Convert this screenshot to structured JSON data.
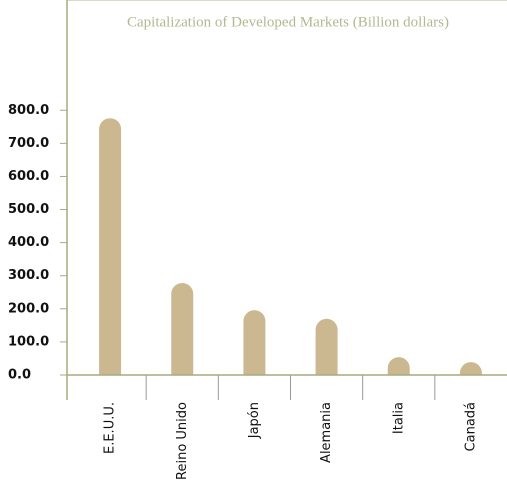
{
  "chart_data": {
    "type": "bar",
    "title": "Capitalization of Developed Markets (Billion dollars)",
    "categories": [
      "E.E.U.U.",
      "Reino Unido",
      "Japón",
      "Alemania",
      "Italia",
      "Canadá"
    ],
    "values": [
      776,
      278,
      196,
      170,
      54,
      39
    ],
    "color": "#cbb891",
    "ylim": [
      0,
      1100
    ],
    "yticks": [
      {
        "value": 0,
        "label": "0.0"
      },
      {
        "value": 100,
        "label": "100.0"
      },
      {
        "value": 200,
        "label": "200.0"
      },
      {
        "value": 300,
        "label": "300.0"
      },
      {
        "value": 400,
        "label": "400.0"
      },
      {
        "value": 500,
        "label": "500.0"
      },
      {
        "value": 600,
        "label": "600.0"
      },
      {
        "value": 700,
        "label": "700.0"
      },
      {
        "value": 800,
        "label": "800.0"
      }
    ]
  }
}
